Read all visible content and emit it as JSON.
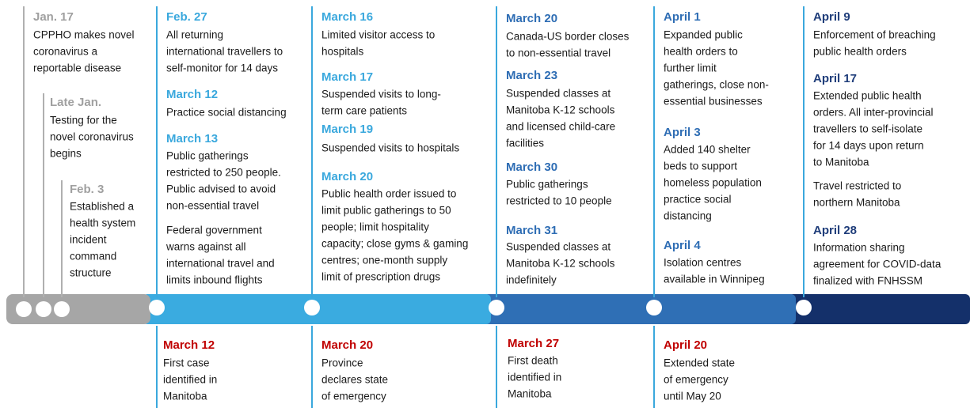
{
  "columns": [
    {
      "items": [
        {
          "heading": "Jan. 17",
          "lines": [
            "CPPHO makes novel",
            "coronavirus a",
            "reportable disease"
          ]
        },
        {
          "heading": "Late Jan.",
          "lines": [
            "Testing for the",
            "novel coronavirus",
            "begins"
          ]
        },
        {
          "heading": "Feb. 3",
          "lines": [
            "Established a",
            "health system",
            "incident",
            "command",
            "structure"
          ]
        }
      ]
    },
    {
      "items": [
        {
          "heading": "Feb. 27",
          "lines": [
            "All returning",
            "international travellers to",
            "self-monitor for 14 days"
          ]
        },
        {
          "heading": "March 12",
          "lines": [
            "Practice social distancing"
          ]
        },
        {
          "heading": "March 13",
          "lines": [
            "Public gatherings",
            "restricted to 250 people.",
            "Public advised to avoid",
            "non-essential travel"
          ]
        },
        {
          "lines": [
            "Federal government",
            "warns against all",
            "international travel and",
            "limits inbound flights"
          ]
        }
      ]
    },
    {
      "items": [
        {
          "heading": "March 16",
          "lines": [
            "Limited visitor access to",
            "hospitals"
          ]
        },
        {
          "heading": "March 17",
          "lines": [
            "Suspended visits to long-",
            "term care patients"
          ]
        },
        {
          "heading": "March 19",
          "lines": [
            "Suspended visits to hospitals"
          ]
        },
        {
          "heading": "March 20",
          "lines": [
            "Public health order issued to",
            "limit public gatherings to 50",
            "people; limit hospitality",
            "capacity; close gyms & gaming",
            "centres; one-month supply",
            "limit of prescription drugs"
          ]
        }
      ]
    },
    {
      "items": [
        {
          "heading": "March 20",
          "lines": [
            "Canada-US border closes",
            "to non-essential travel"
          ]
        },
        {
          "heading": "March 23",
          "lines": [
            "Suspended classes at",
            "Manitoba K-12 schools",
            "and licensed child-care",
            "facilities"
          ]
        },
        {
          "heading": "March 30",
          "lines": [
            "Public gatherings",
            "restricted to 10 people"
          ]
        },
        {
          "heading": "March 31",
          "lines": [
            "Suspended classes at",
            "Manitoba K-12 schools",
            "indefinitely"
          ]
        }
      ]
    },
    {
      "items": [
        {
          "heading": "April 1",
          "lines": [
            "Expanded public",
            "health orders to",
            "further limit",
            "gatherings, close non-",
            "essential businesses"
          ]
        },
        {
          "heading": "April 3",
          "lines": [
            "Added 140 shelter",
            "beds to support",
            "homeless population",
            "practice social",
            "distancing"
          ]
        },
        {
          "heading": "April 4",
          "lines": [
            "Isolation centres",
            "available in Winnipeg"
          ]
        }
      ]
    },
    {
      "items": [
        {
          "heading": "April 9",
          "lines": [
            "Enforcement of breaching",
            "public health orders"
          ]
        },
        {
          "heading": "April 17",
          "lines": [
            "Extended public health",
            "orders. All inter-provincial",
            "travellers to self-isolate",
            "for 14 days upon return",
            "to Manitoba"
          ]
        },
        {
          "lines": [
            "Travel restricted to",
            "northern Manitoba"
          ]
        },
        {
          "heading": "April 28",
          "lines": [
            "Information sharing",
            "agreement for COVID-data",
            "finalized with FNHSSM"
          ]
        }
      ]
    }
  ],
  "bottom": [
    {
      "heading": "March 12",
      "lines": [
        "First case",
        "identified in",
        "Manitoba"
      ]
    },
    {
      "heading": "March 20",
      "lines": [
        "Province",
        "declares state",
        "of emergency"
      ]
    },
    {
      "heading": "March 27",
      "lines": [
        "First death",
        "identified in",
        "Manitoba"
      ]
    },
    {
      "heading": "April 20",
      "lines": [
        "Extended state",
        "of emergency",
        "until May 20"
      ]
    }
  ]
}
